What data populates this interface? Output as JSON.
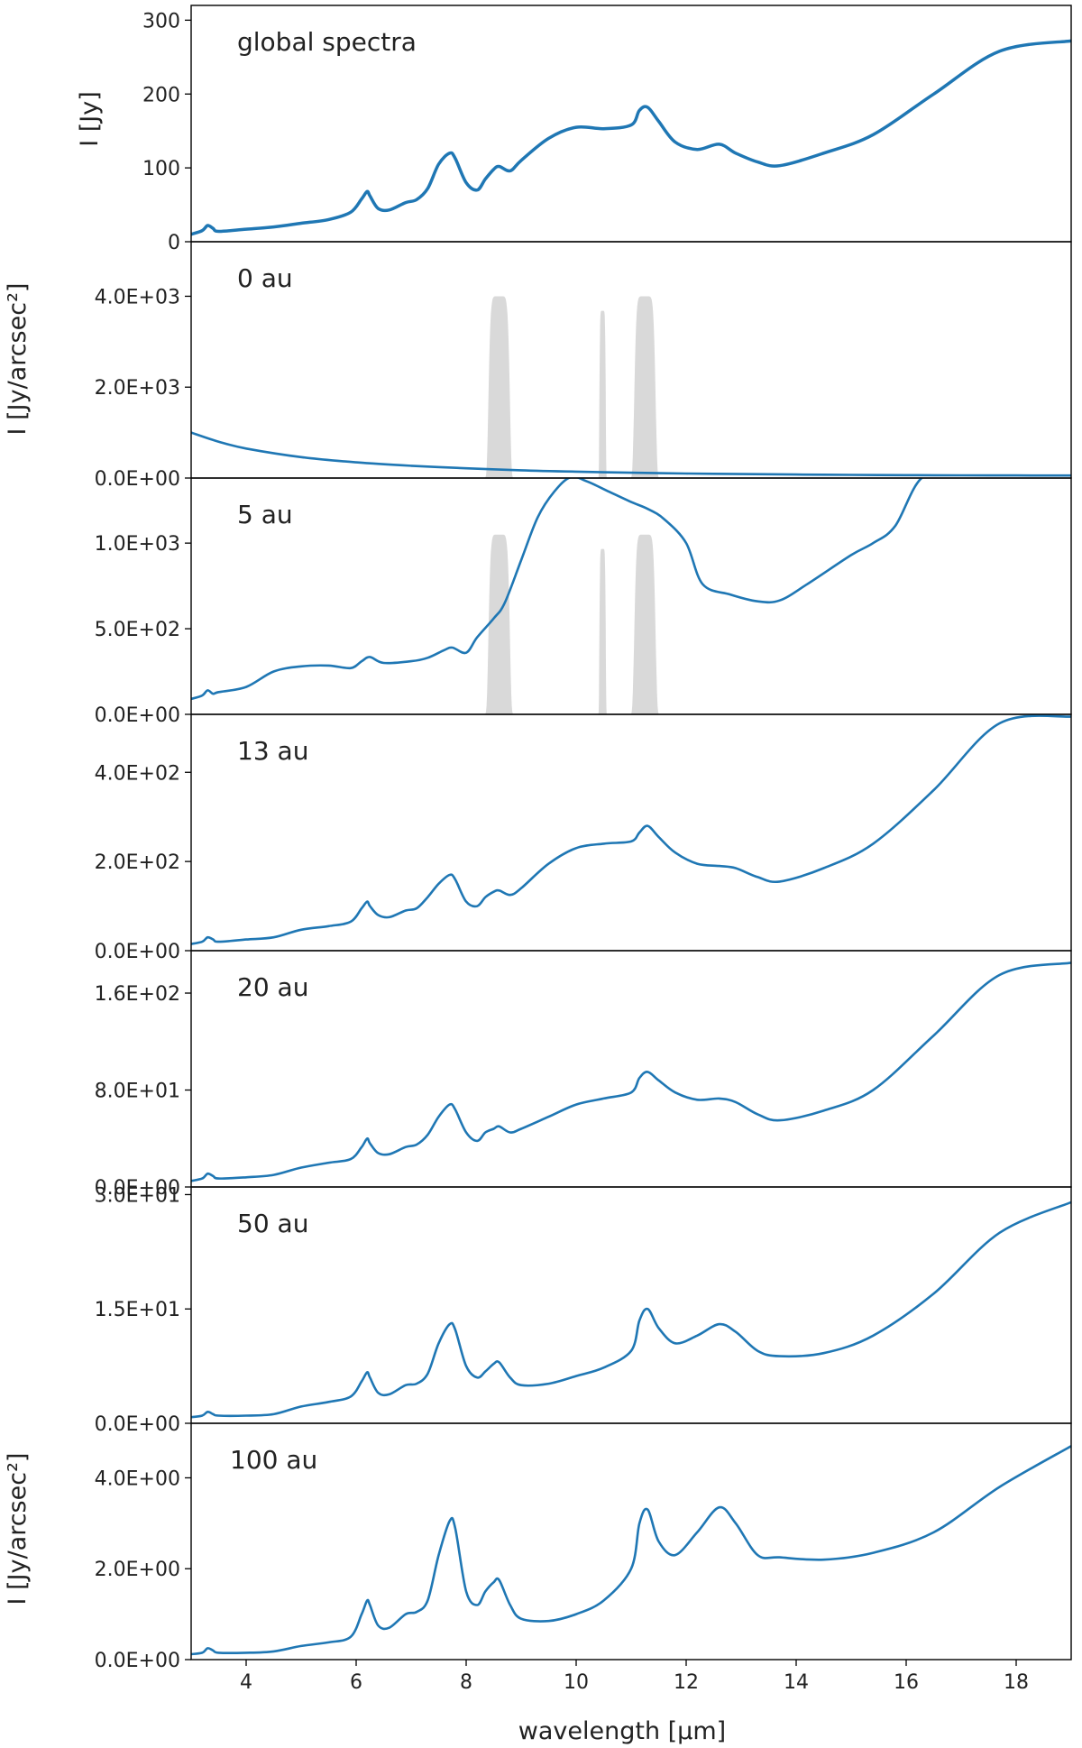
{
  "chart_data": {
    "type": "line",
    "xlabel": "wavelength [μm]",
    "xlim": [
      3,
      19
    ],
    "x_ticks": [
      "4",
      "6",
      "8",
      "10",
      "12",
      "14",
      "16",
      "18"
    ],
    "ylabel_top": "I [Jy]",
    "ylabel_lower": "I [Jy/arcsec²]",
    "line_color": "#1f77b4",
    "filter_color": "#d9d9d9",
    "filter_bands": [
      {
        "center": 8.6,
        "width": 0.4,
        "peak": 1.0
      },
      {
        "center": 10.48,
        "width": 0.12,
        "peak": 0.92
      },
      {
        "center": 11.25,
        "width": 0.4,
        "peak": 1.0
      }
    ],
    "panels": [
      {
        "label": "global spectra",
        "ylim": [
          0,
          320
        ],
        "yticks": [
          {
            "v": 0,
            "t": "0"
          },
          {
            "v": 100,
            "t": "100"
          },
          {
            "v": 200,
            "t": "200"
          },
          {
            "v": 300,
            "t": "300"
          }
        ],
        "x": [
          3.0,
          3.2,
          3.3,
          3.4,
          3.5,
          4.0,
          4.5,
          5.0,
          5.5,
          5.9,
          6.1,
          6.2,
          6.25,
          6.4,
          6.6,
          6.9,
          7.1,
          7.3,
          7.5,
          7.7,
          7.8,
          8.0,
          8.2,
          8.35,
          8.5,
          8.6,
          8.8,
          9.0,
          9.5,
          10.0,
          10.5,
          11.0,
          11.15,
          11.3,
          11.5,
          11.8,
          12.2,
          12.6,
          12.9,
          13.3,
          13.7,
          14.5,
          15.4,
          16.5,
          17.7,
          19.0
        ],
        "y": [
          10,
          15,
          22,
          18,
          14,
          17,
          20,
          25,
          30,
          40,
          58,
          68,
          62,
          45,
          43,
          53,
          57,
          72,
          105,
          120,
          113,
          80,
          70,
          85,
          98,
          102,
          96,
          110,
          140,
          155,
          153,
          158,
          178,
          182,
          163,
          135,
          125,
          132,
          120,
          108,
          103,
          120,
          145,
          200,
          258,
          272
        ]
      },
      {
        "label": "0 au",
        "ylim": [
          0,
          5200
        ],
        "yticks": [
          {
            "v": 0,
            "t": "0.0E+00"
          },
          {
            "v": 2000,
            "t": "2.0E+03"
          },
          {
            "v": 4000,
            "t": "4.0E+03"
          }
        ],
        "filter_peak": 4000,
        "x": [
          3.0,
          3.5,
          4.0,
          5.0,
          6.0,
          7.0,
          8.0,
          9.0,
          10.0,
          11.0,
          12.0,
          13.0,
          14.0,
          15.0,
          16.0,
          17.0,
          18.0,
          19.0
        ],
        "y": [
          1000,
          800,
          650,
          460,
          345,
          270,
          215,
          170,
          140,
          118,
          100,
          88,
          78,
          70,
          64,
          60,
          57,
          55
        ]
      },
      {
        "label": "5 au",
        "ylim": [
          0,
          1380
        ],
        "yticks": [
          {
            "v": 0,
            "t": "0.0E+00"
          },
          {
            "v": 500,
            "t": "5.0E+02"
          },
          {
            "v": 1000,
            "t": "1.0E+03"
          }
        ],
        "filter_peak": 1050,
        "x": [
          3.0,
          3.2,
          3.3,
          3.4,
          3.5,
          4.0,
          4.5,
          5.0,
          5.5,
          5.9,
          6.1,
          6.25,
          6.5,
          7.0,
          7.3,
          7.6,
          7.75,
          8.0,
          8.2,
          8.5,
          8.7,
          9.0,
          9.3,
          9.6,
          9.9,
          10.2,
          10.6,
          11.0,
          11.3,
          11.6,
          12.0,
          12.3,
          12.8,
          13.3,
          13.7,
          14.2,
          15.0,
          15.4,
          15.8,
          16.3,
          17.0
        ],
        "y": [
          90,
          110,
          140,
          120,
          130,
          160,
          250,
          280,
          285,
          270,
          310,
          335,
          300,
          310,
          330,
          375,
          390,
          360,
          450,
          560,
          650,
          900,
          1150,
          1300,
          1385,
          1360,
          1300,
          1240,
          1200,
          1140,
          1000,
          760,
          700,
          660,
          665,
          760,
          930,
          1000,
          1100,
          1385,
          1385
        ]
      },
      {
        "label": "13 au",
        "ylim": [
          0,
          530
        ],
        "yticks": [
          {
            "v": 0,
            "t": "0.0E+00"
          },
          {
            "v": 200,
            "t": "2.0E+02"
          },
          {
            "v": 400,
            "t": "4.0E+02"
          }
        ],
        "x": [
          3.0,
          3.2,
          3.3,
          3.4,
          3.5,
          4.0,
          4.5,
          5.0,
          5.5,
          5.9,
          6.1,
          6.2,
          6.25,
          6.4,
          6.6,
          6.9,
          7.1,
          7.3,
          7.5,
          7.7,
          7.8,
          8.0,
          8.2,
          8.35,
          8.5,
          8.6,
          8.8,
          9.0,
          9.5,
          10.0,
          10.5,
          11.0,
          11.15,
          11.3,
          11.5,
          11.8,
          12.2,
          12.6,
          12.9,
          13.3,
          13.7,
          14.5,
          15.4,
          16.5,
          17.7,
          19.0
        ],
        "y": [
          15,
          20,
          30,
          25,
          20,
          25,
          30,
          47,
          55,
          65,
          95,
          110,
          100,
          80,
          75,
          90,
          95,
          120,
          150,
          170,
          160,
          110,
          100,
          120,
          132,
          135,
          125,
          140,
          195,
          230,
          240,
          245,
          265,
          280,
          255,
          220,
          195,
          190,
          185,
          165,
          155,
          185,
          240,
          360,
          510,
          525
        ]
      },
      {
        "label": "20 au",
        "ylim": [
          0,
          195
        ],
        "yticks": [
          {
            "v": 0,
            "t": "0.0E+00"
          },
          {
            "v": 80,
            "t": "8.0E+01"
          },
          {
            "v": 160,
            "t": "1.6E+02"
          }
        ],
        "x": [
          3.0,
          3.2,
          3.3,
          3.4,
          3.5,
          4.0,
          4.5,
          5.0,
          5.5,
          5.9,
          6.1,
          6.2,
          6.25,
          6.4,
          6.6,
          6.9,
          7.1,
          7.3,
          7.5,
          7.7,
          7.8,
          8.0,
          8.2,
          8.35,
          8.5,
          8.6,
          8.8,
          9.0,
          9.5,
          10.0,
          10.5,
          11.0,
          11.15,
          11.3,
          11.5,
          11.8,
          12.2,
          12.6,
          12.9,
          13.3,
          13.7,
          14.5,
          15.4,
          16.5,
          17.7,
          19.0
        ],
        "y": [
          5,
          7,
          11,
          9,
          7,
          8,
          10,
          16,
          20,
          23,
          33,
          40,
          36,
          28,
          27,
          33,
          35,
          43,
          58,
          68,
          64,
          45,
          38,
          45,
          48,
          50,
          45,
          48,
          58,
          68,
          73,
          78,
          90,
          95,
          88,
          78,
          72,
          73,
          70,
          60,
          55,
          63,
          80,
          125,
          175,
          185
        ]
      },
      {
        "label": "50 au",
        "ylim": [
          0,
          31
        ],
        "yticks": [
          {
            "v": 0,
            "t": "0.0E+00"
          },
          {
            "v": 15,
            "t": "1.5E+01"
          },
          {
            "v": 30,
            "t": "3.0E+01"
          }
        ],
        "x": [
          3.0,
          3.2,
          3.3,
          3.4,
          3.5,
          4.0,
          4.5,
          5.0,
          5.5,
          5.9,
          6.1,
          6.2,
          6.25,
          6.4,
          6.6,
          6.9,
          7.1,
          7.3,
          7.5,
          7.7,
          7.8,
          8.0,
          8.2,
          8.35,
          8.5,
          8.6,
          8.8,
          9.0,
          9.5,
          10.0,
          10.5,
          11.0,
          11.15,
          11.3,
          11.5,
          11.8,
          12.2,
          12.6,
          12.9,
          13.3,
          13.7,
          14.5,
          15.4,
          16.5,
          17.7,
          19.0
        ],
        "y": [
          0.8,
          1,
          1.5,
          1.2,
          1,
          1,
          1.2,
          2.2,
          2.8,
          3.5,
          5.5,
          6.7,
          6,
          4,
          3.8,
          5,
          5.2,
          6.5,
          10.5,
          13,
          12.3,
          7.5,
          6,
          6.8,
          7.8,
          8,
          6,
          5,
          5.2,
          6.2,
          7.3,
          9.5,
          13.5,
          15,
          12.5,
          10.5,
          11.5,
          13,
          12,
          9.5,
          8.8,
          9.2,
          11.5,
          17,
          25,
          29
        ]
      },
      {
        "label": "100 au",
        "ylim": [
          0,
          5.2
        ],
        "yticks": [
          {
            "v": 0,
            "t": "0.0E+00"
          },
          {
            "v": 2,
            "t": "2.0E+00"
          },
          {
            "v": 4,
            "t": "4.0E+00"
          }
        ],
        "x": [
          3.0,
          3.2,
          3.3,
          3.4,
          3.5,
          4.0,
          4.5,
          5.0,
          5.5,
          5.9,
          6.1,
          6.2,
          6.25,
          6.4,
          6.6,
          6.9,
          7.1,
          7.3,
          7.5,
          7.7,
          7.8,
          8.0,
          8.2,
          8.35,
          8.5,
          8.6,
          8.8,
          9.0,
          9.5,
          10.0,
          10.5,
          11.0,
          11.15,
          11.3,
          11.5,
          11.8,
          12.2,
          12.6,
          12.9,
          13.3,
          13.7,
          14.5,
          15.4,
          16.5,
          17.7,
          19.0
        ],
        "y": [
          0.12,
          0.15,
          0.25,
          0.2,
          0.15,
          0.15,
          0.18,
          0.3,
          0.38,
          0.5,
          1.0,
          1.3,
          1.2,
          0.75,
          0.7,
          1.0,
          1.05,
          1.3,
          2.3,
          3.05,
          2.9,
          1.5,
          1.2,
          1.5,
          1.7,
          1.75,
          1.2,
          0.9,
          0.85,
          1.0,
          1.3,
          2.0,
          3.0,
          3.3,
          2.6,
          2.3,
          2.8,
          3.35,
          3.0,
          2.3,
          2.25,
          2.2,
          2.35,
          2.8,
          3.8,
          4.7
        ]
      }
    ]
  }
}
